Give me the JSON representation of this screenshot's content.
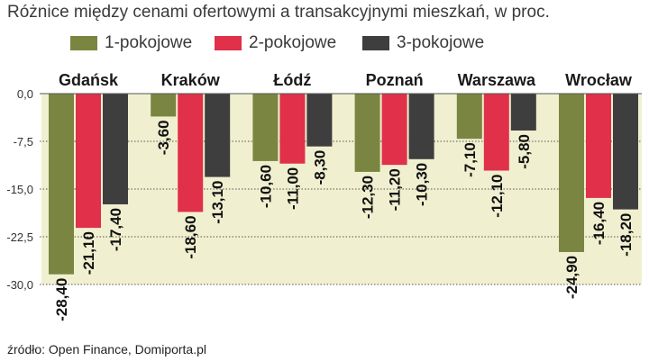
{
  "title": "Różnice między cenami ofertowymi a transakcyjnymi mieszkań, w proc.",
  "source": "źródło: Open Finance, Domiporta.pl",
  "colors": {
    "series": [
      "#7a8541",
      "#e0304a",
      "#3e3e3e"
    ],
    "background": "#f0f0d0",
    "grid": "#555555"
  },
  "chart_data": {
    "type": "bar",
    "title": "Różnice między cenami ofertowymi a transakcyjnymi mieszkań, w proc.",
    "categories": [
      "Gdańsk",
      "Kraków",
      "Łódź",
      "Poznań",
      "Warszawa",
      "Wrocław"
    ],
    "series": [
      {
        "name": "1-pokojowe",
        "values": [
          -28.4,
          -3.6,
          -10.6,
          -12.3,
          -7.1,
          -24.9
        ],
        "labels": [
          "-28,40",
          "-3,60",
          "-10,60",
          "-12,30",
          "-7,10",
          "-24,90"
        ]
      },
      {
        "name": "2-pokojowe",
        "values": [
          -21.1,
          -18.6,
          -11.0,
          -11.2,
          -12.1,
          -16.4
        ],
        "labels": [
          "-21,10",
          "-18,60",
          "-11,00",
          "-11,20",
          "-12,10",
          "-16,40"
        ]
      },
      {
        "name": "3-pokojowe",
        "values": [
          -17.4,
          -13.1,
          -8.3,
          -10.3,
          -5.8,
          -18.2
        ],
        "labels": [
          "-17,40",
          "-13,10",
          "-8,30",
          "-10,30",
          "-5,80",
          "-18,20"
        ]
      }
    ],
    "yticks": [
      0,
      -7.5,
      -15,
      -22.5,
      -30
    ],
    "ytick_labels": [
      "0,0",
      "-7,5",
      "-15,0",
      "-22,5",
      "-30,0"
    ],
    "ylim": [
      -30,
      0
    ],
    "xlabel": "",
    "ylabel": "",
    "grid": true,
    "legend": "top-left"
  }
}
